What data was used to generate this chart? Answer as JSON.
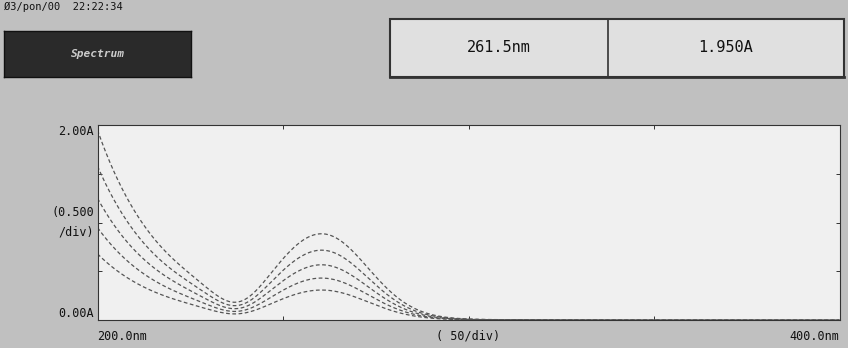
{
  "title_header": "Ø3/pon/00  22:22:34",
  "spectrum_label": "Spectrum",
  "wavelength_display": "261.5nm",
  "absorbance_display": "1.950A",
  "xmin": 200.0,
  "xmax": 400.0,
  "ymin": 0.0,
  "ymax": 2.0,
  "xlabel_left": "200.0nm",
  "xlabel_center": "( 50/div)",
  "xlabel_right": "400.0nm",
  "ylabel_top": "2.00A",
  "ylabel_mid": "(0.500\n/div)",
  "ylabel_bot": "0.00A",
  "background_color": "#c0c0c0",
  "plot_bg_color": "#f0f0f0",
  "line_color": "#555555",
  "num_curves": 5,
  "scales": [
    1.95,
    1.58,
    1.25,
    0.95,
    0.68
  ]
}
